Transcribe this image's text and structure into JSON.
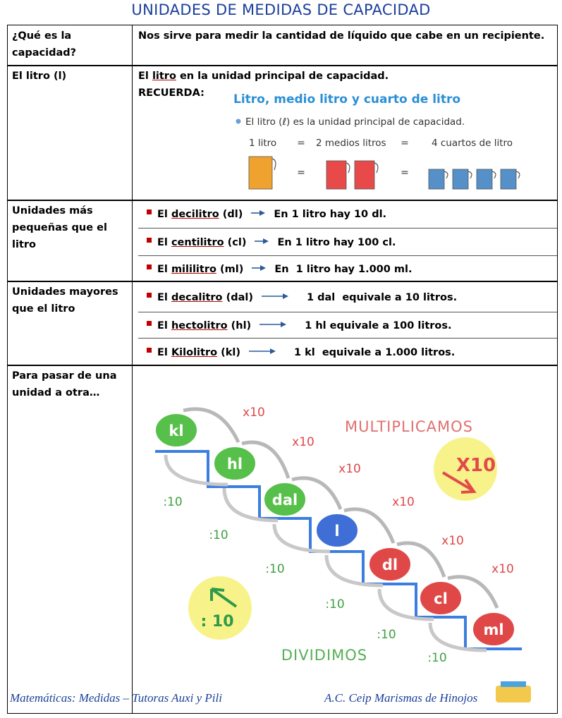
{
  "title": "UNIDADES DE MEDIDAS DE CAPACIDAD",
  "rows": [
    {
      "label": "¿Qué es la capacidad?",
      "text": "Nos sirve para medir la cantidad de líquido que cabe en un recipiente."
    },
    {
      "label": "El litro (l)",
      "text": {
        "pre": "El ",
        "term": "litro",
        "post": " en la unidad principal de capacidad."
      },
      "note": "RECUERDA:",
      "figure": {
        "heading": "Litro, medio litro y cuarto de litro",
        "bullet": "El litro (ℓ) es la unidad principal de capacidad.",
        "labels": [
          "1 litro",
          "2 medios litros",
          "4 cuartos de litro"
        ],
        "equals": "="
      }
    },
    {
      "label": "Unidades más pequeñas que el litro",
      "items": [
        {
          "pre": "El ",
          "term": "decilitro",
          "post": " (dl)",
          "result": "En 1 litro hay 10 dl."
        },
        {
          "pre": "El ",
          "term": "centilitro",
          "post": " (cl)",
          "result": "En 1 litro hay 100 cl."
        },
        {
          "pre": "El ",
          "term": "mililitro",
          "post": " (ml)",
          "result": "En  1 litro hay 1.000 ml."
        }
      ]
    },
    {
      "label": "Unidades mayores que el litro",
      "items": [
        {
          "pre": "El ",
          "term": "decalitro",
          "post": " (dal)",
          "result": "1 dal  equivale a 10 litros."
        },
        {
          "pre": "El ",
          "term": "hectolitro",
          "post": " (hl)",
          "result": "1 hl equivale a 100 litros."
        },
        {
          "pre": "El ",
          "term": "Kilolitro",
          "post": " (kl)",
          "result": "1 kl  equivale a 1.000 litros."
        }
      ]
    },
    {
      "label": "Para pasar de una unidad a otra…",
      "diagram": {
        "units": [
          "kl",
          "hl",
          "dal",
          "l",
          "dl",
          "cl",
          "ml"
        ],
        "multiply": "x10",
        "divide": ":10",
        "multiply_title": "MULTIPLICAMOS",
        "divide_title": "DIVIDIMOS",
        "multiply_badge": "X10",
        "divide_badge": ": 10"
      }
    }
  ],
  "footer": {
    "left": "Matemáticas: Medidas – Tutoras Auxi y Pili",
    "right": "A.C. Ceip Marismas de Hinojos"
  }
}
